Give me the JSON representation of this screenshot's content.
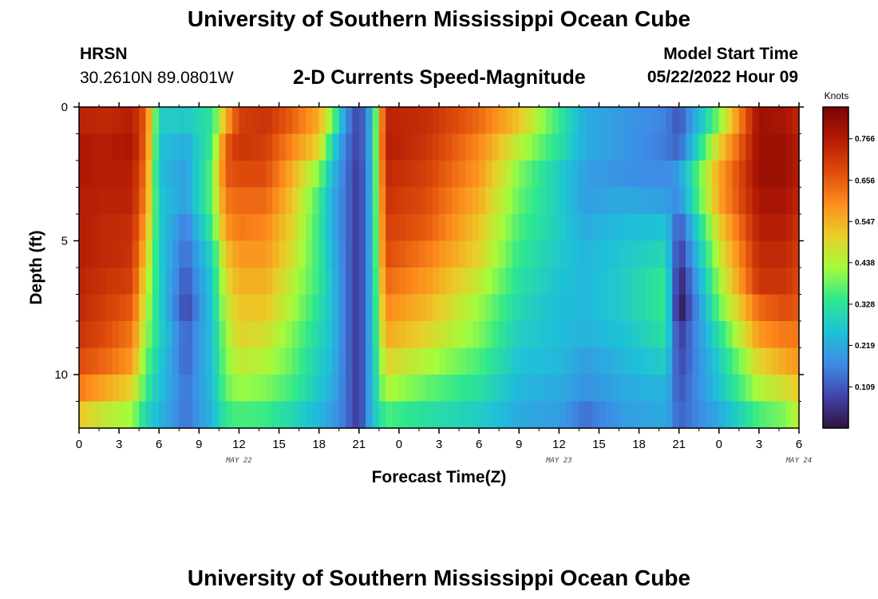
{
  "header": {
    "title": "University of Southern Mississippi Ocean Cube",
    "station": "HRSN",
    "coords": "30.2610N  89.0801W",
    "subtitle": "2-D Currents Speed-Magnitude",
    "model_start_label": "Model Start Time",
    "model_start_value": "05/22/2022 Hour 09"
  },
  "footer": {
    "title": "University of Southern Mississippi Ocean Cube"
  },
  "chart_data": {
    "type": "heatmap",
    "xlabel": "Forecast Time(Z)",
    "ylabel": "Depth (ft)",
    "x_ticks": [
      "0",
      "3",
      "6",
      "9",
      "12",
      "15",
      "18",
      "21",
      "0",
      "3",
      "6",
      "9",
      "12",
      "15",
      "18",
      "21",
      "0",
      "3",
      "6"
    ],
    "x_dates": [
      {
        "label": "MAY 22",
        "hour_index": 12
      },
      {
        "label": "MAY 23",
        "hour_index": 36
      },
      {
        "label": "MAY 24",
        "hour_index": 54
      }
    ],
    "x_range_hours": [
      0,
      54
    ],
    "y_ticks": [
      0,
      5,
      10
    ],
    "y_range": [
      0,
      12
    ],
    "colorbar": {
      "label": "Knots",
      "min": 0.0,
      "max": 0.85,
      "ticks": [
        0.109,
        0.219,
        0.328,
        0.438,
        0.547,
        0.656,
        0.766
      ]
    },
    "depth_levels_ft": [
      0.5,
      1.5,
      2.5,
      3.5,
      4.5,
      5.5,
      6.5,
      7.5,
      8.5,
      9.5,
      10.5,
      11.5
    ],
    "speed_rows_knots": [
      [
        0.75,
        0.74,
        0.76,
        0.65,
        0.28,
        0.27,
        0.33,
        0.55,
        0.7,
        0.72,
        0.65,
        0.55,
        0.4,
        0.18,
        0.07,
        0.25,
        0.75,
        0.73,
        0.64,
        0.52,
        0.34,
        0.22,
        0.19,
        0.16,
        0.1,
        0.4,
        0.8,
        0.78,
        0.74
      ],
      [
        0.77,
        0.76,
        0.78,
        0.64,
        0.26,
        0.22,
        0.35,
        0.65,
        0.72,
        0.7,
        0.6,
        0.5,
        0.3,
        0.15,
        0.07,
        0.25,
        0.76,
        0.72,
        0.6,
        0.45,
        0.32,
        0.22,
        0.19,
        0.15,
        0.12,
        0.5,
        0.8,
        0.8,
        0.76
      ],
      [
        0.77,
        0.76,
        0.76,
        0.62,
        0.25,
        0.2,
        0.38,
        0.66,
        0.68,
        0.68,
        0.55,
        0.4,
        0.25,
        0.14,
        0.06,
        0.25,
        0.74,
        0.7,
        0.58,
        0.4,
        0.28,
        0.2,
        0.18,
        0.17,
        0.2,
        0.56,
        0.8,
        0.8,
        0.76
      ],
      [
        0.76,
        0.75,
        0.75,
        0.6,
        0.27,
        0.2,
        0.38,
        0.62,
        0.64,
        0.64,
        0.52,
        0.35,
        0.22,
        0.14,
        0.06,
        0.25,
        0.72,
        0.68,
        0.55,
        0.38,
        0.28,
        0.2,
        0.22,
        0.2,
        0.17,
        0.56,
        0.78,
        0.78,
        0.74
      ],
      [
        0.76,
        0.74,
        0.73,
        0.56,
        0.28,
        0.15,
        0.35,
        0.58,
        0.62,
        0.6,
        0.5,
        0.34,
        0.22,
        0.14,
        0.06,
        0.25,
        0.7,
        0.66,
        0.52,
        0.36,
        0.28,
        0.22,
        0.25,
        0.26,
        0.1,
        0.5,
        0.76,
        0.76,
        0.72
      ],
      [
        0.76,
        0.74,
        0.72,
        0.52,
        0.28,
        0.13,
        0.3,
        0.52,
        0.58,
        0.58,
        0.48,
        0.34,
        0.24,
        0.14,
        0.06,
        0.25,
        0.68,
        0.62,
        0.5,
        0.34,
        0.27,
        0.24,
        0.27,
        0.3,
        0.06,
        0.46,
        0.74,
        0.74,
        0.7
      ],
      [
        0.75,
        0.72,
        0.7,
        0.48,
        0.29,
        0.1,
        0.28,
        0.48,
        0.55,
        0.55,
        0.45,
        0.34,
        0.25,
        0.14,
        0.06,
        0.25,
        0.64,
        0.58,
        0.46,
        0.32,
        0.26,
        0.24,
        0.28,
        0.34,
        0.02,
        0.42,
        0.72,
        0.72,
        0.68
      ],
      [
        0.74,
        0.7,
        0.66,
        0.45,
        0.29,
        0.08,
        0.27,
        0.45,
        0.52,
        0.52,
        0.43,
        0.32,
        0.25,
        0.14,
        0.06,
        0.25,
        0.6,
        0.54,
        0.42,
        0.3,
        0.25,
        0.24,
        0.28,
        0.34,
        0.0,
        0.38,
        0.64,
        0.68,
        0.66
      ],
      [
        0.72,
        0.68,
        0.62,
        0.42,
        0.3,
        0.12,
        0.26,
        0.42,
        0.5,
        0.48,
        0.4,
        0.3,
        0.25,
        0.14,
        0.06,
        0.25,
        0.56,
        0.5,
        0.4,
        0.28,
        0.25,
        0.23,
        0.26,
        0.32,
        0.06,
        0.32,
        0.58,
        0.62,
        0.62
      ],
      [
        0.68,
        0.64,
        0.58,
        0.38,
        0.28,
        0.12,
        0.26,
        0.4,
        0.46,
        0.44,
        0.38,
        0.28,
        0.24,
        0.14,
        0.06,
        0.25,
        0.5,
        0.44,
        0.36,
        0.26,
        0.24,
        0.2,
        0.24,
        0.28,
        0.08,
        0.28,
        0.5,
        0.56,
        0.58
      ],
      [
        0.62,
        0.56,
        0.5,
        0.35,
        0.26,
        0.14,
        0.25,
        0.38,
        0.42,
        0.4,
        0.35,
        0.27,
        0.22,
        0.14,
        0.06,
        0.25,
        0.44,
        0.38,
        0.32,
        0.24,
        0.22,
        0.18,
        0.22,
        0.24,
        0.1,
        0.26,
        0.44,
        0.48,
        0.52
      ],
      [
        0.52,
        0.46,
        0.42,
        0.3,
        0.24,
        0.14,
        0.24,
        0.34,
        0.36,
        0.35,
        0.3,
        0.24,
        0.2,
        0.14,
        0.06,
        0.25,
        0.36,
        0.32,
        0.28,
        0.22,
        0.2,
        0.14,
        0.2,
        0.22,
        0.12,
        0.22,
        0.36,
        0.4,
        0.46
      ]
    ],
    "time_hours": [
      0,
      2,
      4,
      5,
      6,
      8,
      10,
      11,
      12,
      14,
      16,
      18,
      19,
      20,
      21,
      22,
      23,
      26,
      30,
      33,
      36,
      38,
      41,
      44,
      45,
      48,
      51,
      53,
      54
    ]
  }
}
